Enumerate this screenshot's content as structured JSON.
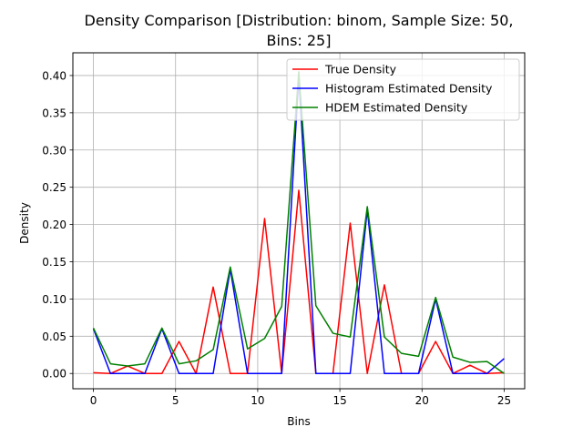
{
  "chart_data": {
    "type": "line",
    "title_line1": "Density Comparison [Distribution: binom, Sample Size: 50,",
    "title_line2": "Bins: 25]",
    "xlabel": "Bins",
    "ylabel": "Density",
    "xlim": [
      -1.25,
      26.25
    ],
    "ylim": [
      -0.0205,
      0.4305
    ],
    "xticks": [
      0,
      5,
      10,
      15,
      20,
      25
    ],
    "yticks": [
      0.0,
      0.05,
      0.1,
      0.15,
      0.2,
      0.25,
      0.3,
      0.35,
      0.4
    ],
    "xtick_labels": [
      "0",
      "5",
      "10",
      "15",
      "20",
      "25"
    ],
    "ytick_labels": [
      "0.00",
      "0.05",
      "0.10",
      "0.15",
      "0.20",
      "0.25",
      "0.30",
      "0.35",
      "0.40"
    ],
    "grid": true,
    "legend_position": "top-right",
    "series": [
      {
        "name": "True Density",
        "color": "#ff0000",
        "x": [
          0,
          1.04,
          2.08,
          3.13,
          4.17,
          5.21,
          6.25,
          7.29,
          8.33,
          9.38,
          10.42,
          11.46,
          12.5,
          13.54,
          14.58,
          15.63,
          16.67,
          17.71,
          18.75,
          19.79,
          20.83,
          21.88,
          22.92,
          23.96,
          25
        ],
        "values": [
          0.001,
          0.0,
          0.01,
          0.0,
          0.0,
          0.043,
          0.0,
          0.116,
          0.0,
          0.0,
          0.208,
          0.0,
          0.246,
          0.0,
          0.0,
          0.202,
          0.0,
          0.119,
          0.0,
          0.0,
          0.043,
          0.0,
          0.011,
          0.0,
          0.001
        ]
      },
      {
        "name": "Histogram Estimated Density",
        "color": "#0000ff",
        "x": [
          0,
          1.04,
          2.08,
          3.13,
          4.17,
          5.21,
          6.25,
          7.29,
          8.33,
          9.38,
          10.42,
          11.46,
          12.5,
          13.54,
          14.58,
          15.63,
          16.67,
          17.71,
          18.75,
          19.79,
          20.83,
          21.88,
          22.92,
          23.96,
          25
        ],
        "values": [
          0.06,
          0.0,
          0.0,
          0.0,
          0.06,
          0.0,
          0.0,
          0.0,
          0.14,
          0.0,
          0.0,
          0.0,
          0.4,
          0.0,
          0.0,
          0.0,
          0.22,
          0.0,
          0.0,
          0.0,
          0.1,
          0.0,
          0.0,
          0.0,
          0.02
        ]
      },
      {
        "name": "HDEM Estimated Density",
        "color": "#008000",
        "x": [
          0,
          1.04,
          2.08,
          3.13,
          4.17,
          5.21,
          6.25,
          7.29,
          8.33,
          9.38,
          10.42,
          11.46,
          12.5,
          13.54,
          14.58,
          15.63,
          16.67,
          17.71,
          18.75,
          19.79,
          20.83,
          21.88,
          22.92,
          23.96,
          25
        ],
        "values": [
          0.061,
          0.013,
          0.01,
          0.013,
          0.061,
          0.013,
          0.017,
          0.032,
          0.143,
          0.033,
          0.047,
          0.09,
          0.405,
          0.091,
          0.054,
          0.049,
          0.224,
          0.049,
          0.027,
          0.023,
          0.102,
          0.022,
          0.015,
          0.016,
          0.0
        ]
      }
    ]
  }
}
